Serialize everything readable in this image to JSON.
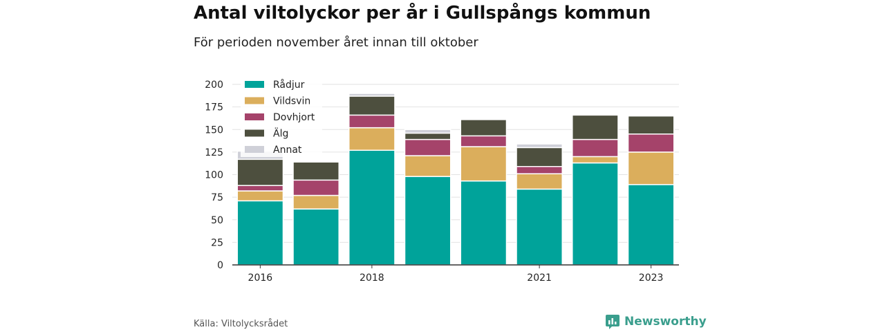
{
  "title": "Antal viltolyckor per år i Gullspångs kommun",
  "subtitle": "För perioden november året innan till oktober",
  "source": "Källa: Viltolycksrådet",
  "brand": "Newsworthy",
  "colors": {
    "Rådjur": "#00a39a",
    "Vildsvin": "#dbae5c",
    "Dovhjort": "#a5436a",
    "Älg": "#4d4f3e",
    "Annat": "#cfd0d8",
    "grid": "#e2e2e2",
    "axis": "#333333",
    "brand": "#3a9e8d"
  },
  "chart_data": {
    "type": "bar",
    "stacked": true,
    "x": [
      2016,
      2017,
      2018,
      2019,
      2020,
      2021,
      2022,
      2023
    ],
    "x_tick_labels": [
      "2016",
      "",
      "2018",
      "",
      "",
      "2021",
      "",
      "2023"
    ],
    "ylim": [
      0,
      200
    ],
    "y_ticks": [
      0,
      25,
      50,
      75,
      100,
      125,
      150,
      175,
      200
    ],
    "grid": true,
    "legend_position": "top-left",
    "series": [
      {
        "name": "Rådjur",
        "values": [
          71,
          62,
          127,
          98,
          93,
          84,
          113,
          89
        ]
      },
      {
        "name": "Vildsvin",
        "values": [
          11,
          15,
          25,
          23,
          38,
          17,
          7,
          36
        ]
      },
      {
        "name": "Dovhjort",
        "values": [
          6,
          17,
          14,
          18,
          12,
          8,
          19,
          20
        ]
      },
      {
        "name": "Älg",
        "values": [
          29,
          20,
          21,
          7,
          18,
          21,
          27,
          20
        ]
      },
      {
        "name": "Annat",
        "values": [
          9,
          0,
          3,
          4,
          0,
          4,
          0,
          0
        ]
      }
    ]
  }
}
